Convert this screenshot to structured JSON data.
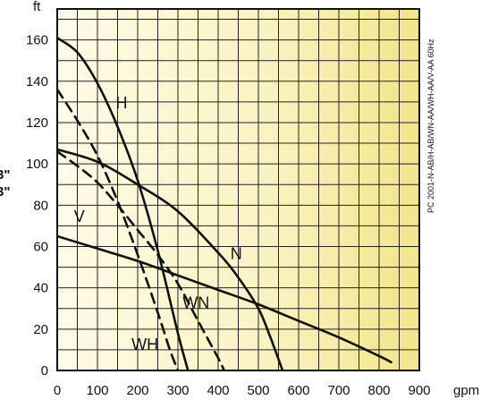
{
  "chart_data": {
    "type": "line",
    "title": "",
    "xlabel": "gpm",
    "ylabel": "ft",
    "xlim": [
      0,
      900
    ],
    "ylim": [
      0,
      175
    ],
    "x_ticks": [
      "0",
      "100",
      "200",
      "300",
      "400",
      "500",
      "600",
      "700",
      "800",
      "900"
    ],
    "y_ticks": [
      "0",
      "20",
      "40",
      "60",
      "80",
      "100",
      "120",
      "140",
      "160"
    ],
    "grid": true,
    "background": "gradient pale yellow (left) to deeper yellow (right)",
    "side_note": "PC 2001-N-AB/H-AB/WN-AA/WH-AA/V-AA 60Hz",
    "left_edge_fragments": [
      "3\"",
      "3\""
    ],
    "series": [
      {
        "name": "H",
        "dash": false,
        "x": [
          0,
          50,
          100,
          150,
          200,
          250,
          300,
          325
        ],
        "y": [
          161,
          154,
          139,
          118,
          92,
          58,
          18,
          0
        ]
      },
      {
        "name": "N",
        "dash": false,
        "x": [
          0,
          100,
          200,
          300,
          400,
          450,
          500,
          530,
          560
        ],
        "y": [
          107,
          101,
          90,
          77,
          57,
          45,
          30,
          16,
          0
        ]
      },
      {
        "name": "V",
        "dash": false,
        "x": [
          0,
          100,
          200,
          300,
          400,
          500,
          600,
          700,
          800,
          830
        ],
        "y": [
          65,
          59,
          53,
          46,
          39,
          32,
          24,
          16,
          7,
          4
        ]
      },
      {
        "name": "WH",
        "dash": true,
        "x": [
          0,
          50,
          100,
          150,
          200,
          250,
          280,
          300
        ],
        "y": [
          136,
          121,
          104,
          82,
          56,
          28,
          10,
          0
        ]
      },
      {
        "name": "WN",
        "dash": true,
        "x": [
          0,
          50,
          100,
          150,
          200,
          250,
          300,
          350,
          400,
          415
        ],
        "y": [
          106,
          99,
          91,
          80,
          68,
          56,
          42,
          24,
          6,
          0
        ]
      }
    ],
    "curve_labels": [
      {
        "text": "H",
        "x": 160,
        "y": 127
      },
      {
        "text": "N",
        "x": 445,
        "y": 54
      },
      {
        "text": "V",
        "x": 55,
        "y": 72
      },
      {
        "text": "WN",
        "x": 345,
        "y": 30
      },
      {
        "text": "WH",
        "x": 218,
        "y": 10
      }
    ]
  }
}
